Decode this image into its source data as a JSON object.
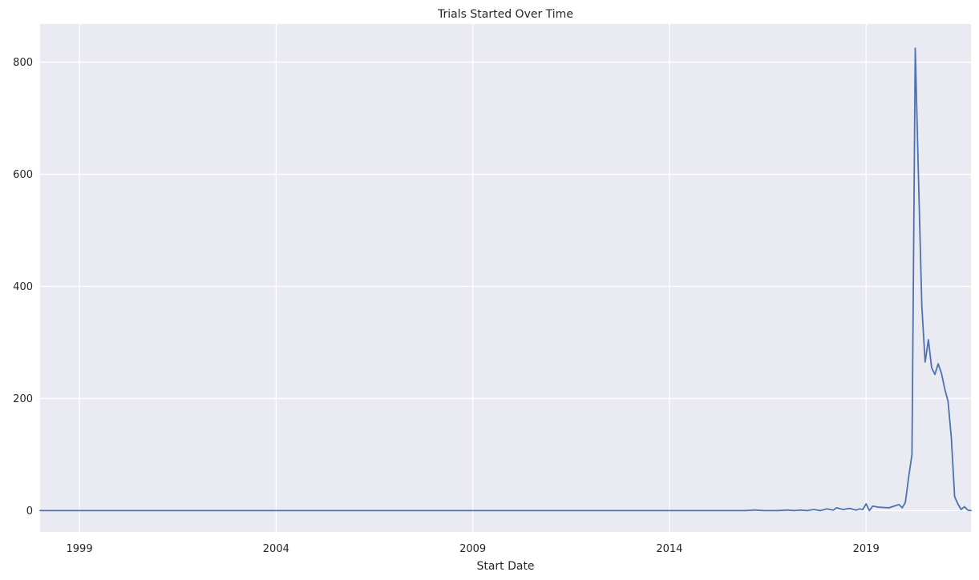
{
  "chart_data": {
    "type": "line",
    "title": "Trials Started Over Time",
    "xlabel": "Start Date",
    "ylabel": "",
    "x_axis_type": "date",
    "xlim": [
      "1998-01",
      "2021-09"
    ],
    "ylim": [
      -38,
      868
    ],
    "x_ticks": [
      {
        "date": "1999-01",
        "label": "1999"
      },
      {
        "date": "2004-01",
        "label": "2004"
      },
      {
        "date": "2009-01",
        "label": "2009"
      },
      {
        "date": "2014-01",
        "label": "2014"
      },
      {
        "date": "2019-01",
        "label": "2019"
      }
    ],
    "y_ticks": [
      0,
      200,
      400,
      600,
      800
    ],
    "grid": true,
    "colors": {
      "line": "#4c72b0",
      "background": "#eaeaf2",
      "grid": "#ffffff"
    },
    "series": [
      {
        "color": "#4c72b0",
        "points": [
          [
            "1998-01",
            0
          ],
          [
            "2015-12",
            0
          ],
          [
            "2016-03",
            1
          ],
          [
            "2016-06",
            0
          ],
          [
            "2016-10",
            0
          ],
          [
            "2017-01",
            1
          ],
          [
            "2017-03",
            0
          ],
          [
            "2017-05",
            1
          ],
          [
            "2017-07",
            0
          ],
          [
            "2017-09",
            2
          ],
          [
            "2017-11",
            0
          ],
          [
            "2018-01",
            3
          ],
          [
            "2018-03",
            1
          ],
          [
            "2018-04",
            5
          ],
          [
            "2018-06",
            2
          ],
          [
            "2018-08",
            4
          ],
          [
            "2018-10",
            1
          ],
          [
            "2018-11",
            3
          ],
          [
            "2018-12",
            2
          ],
          [
            "2019-01",
            12
          ],
          [
            "2019-02",
            0
          ],
          [
            "2019-03",
            8
          ],
          [
            "2019-05",
            6
          ],
          [
            "2019-08",
            5
          ],
          [
            "2019-10",
            9
          ],
          [
            "2019-11",
            11
          ],
          [
            "2019-12",
            5
          ],
          [
            "2020-01",
            15
          ],
          [
            "2020-02",
            60
          ],
          [
            "2020-03",
            100
          ],
          [
            "2020-04",
            825
          ],
          [
            "2020-05",
            590
          ],
          [
            "2020-06",
            365
          ],
          [
            "2020-07",
            265
          ],
          [
            "2020-08",
            305
          ],
          [
            "2020-09",
            255
          ],
          [
            "2020-10",
            243
          ],
          [
            "2020-11",
            262
          ],
          [
            "2020-12",
            245
          ],
          [
            "2021-01",
            217
          ],
          [
            "2021-02",
            195
          ],
          [
            "2021-03",
            130
          ],
          [
            "2021-04",
            25
          ],
          [
            "2021-05",
            12
          ],
          [
            "2021-06",
            2
          ],
          [
            "2021-07",
            7
          ],
          [
            "2021-08",
            1
          ],
          [
            "2021-09",
            0
          ]
        ]
      }
    ]
  }
}
